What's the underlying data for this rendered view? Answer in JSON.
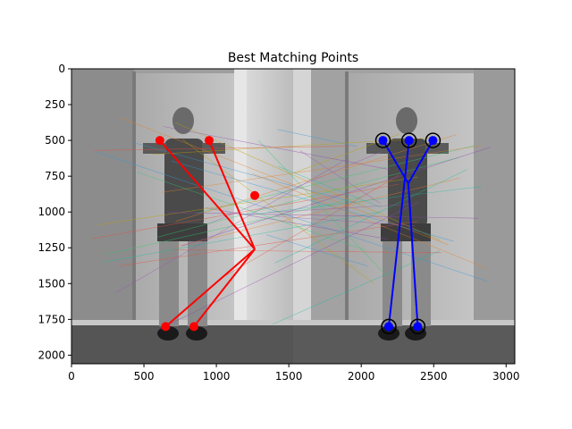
{
  "chart_data": {
    "type": "scatter",
    "title": "Best Matching Points",
    "xlabel": "",
    "ylabel": "",
    "xlim": [
      0,
      3060
    ],
    "ylim": [
      2060,
      0
    ],
    "x_ticks": [
      0,
      500,
      1000,
      1500,
      2000,
      2500,
      3000
    ],
    "y_ticks": [
      0,
      250,
      500,
      750,
      1000,
      1250,
      1500,
      1750,
      2000
    ],
    "grid": false,
    "background_image": "two side-by-side grayscale photos of a person giving thumbs up in front of a door",
    "left_points": {
      "color": "#ff0000",
      "points": [
        [
          610,
          500
        ],
        [
          950,
          500
        ],
        [
          1265,
          885
        ],
        [
          650,
          1800
        ],
        [
          845,
          1800
        ]
      ],
      "skeleton_hub": [
        1265,
        1260
      ],
      "skeleton_segments": [
        [
          [
            610,
            500
          ],
          [
            1265,
            1260
          ]
        ],
        [
          [
            950,
            500
          ],
          [
            1265,
            1260
          ]
        ],
        [
          [
            650,
            1800
          ],
          [
            1265,
            1260
          ]
        ],
        [
          [
            845,
            1800
          ],
          [
            1265,
            1260
          ]
        ]
      ]
    },
    "right_points": {
      "color": "#0000ff",
      "ring_color": "#000000",
      "points": [
        [
          2150,
          500
        ],
        [
          2330,
          500
        ],
        [
          2495,
          500
        ],
        [
          2190,
          1800
        ],
        [
          2390,
          1800
        ]
      ],
      "skeleton_hub": [
        2325,
        800
      ],
      "skeleton_segments": [
        [
          [
            2150,
            500
          ],
          [
            2325,
            800
          ]
        ],
        [
          [
            2495,
            500
          ],
          [
            2325,
            800
          ]
        ],
        [
          [
            2330,
            500
          ],
          [
            2190,
            1800
          ]
        ],
        [
          [
            2325,
            800
          ],
          [
            2390,
            1800
          ]
        ]
      ]
    },
    "match_lines_count": 40
  }
}
